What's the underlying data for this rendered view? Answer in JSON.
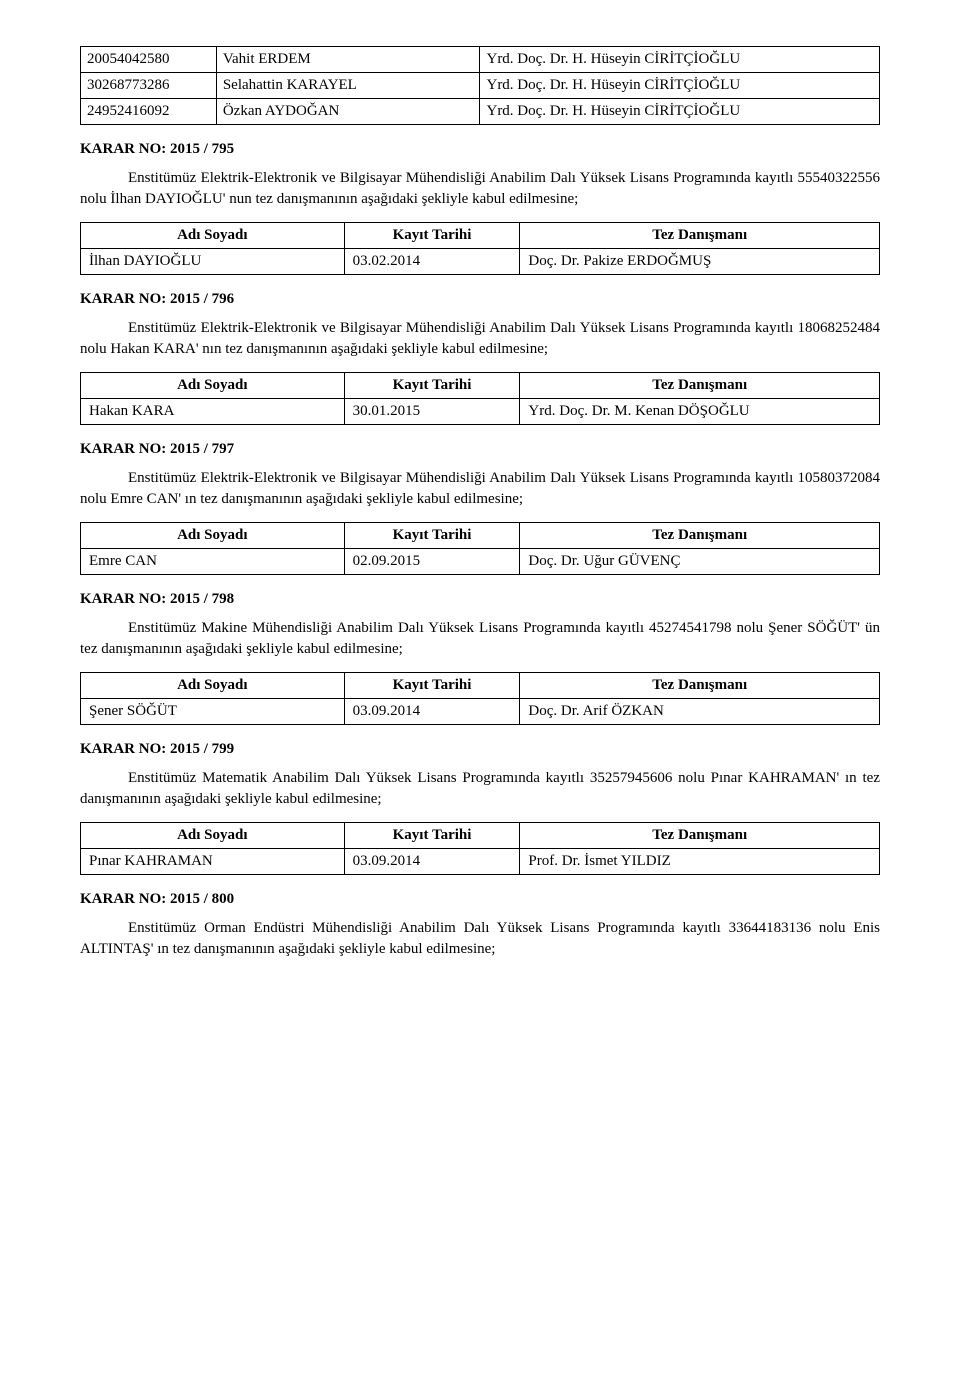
{
  "top_table": {
    "rows": [
      [
        "20054042580",
        "Vahit ERDEM",
        "Yrd. Doç. Dr. H. Hüseyin CİRİTÇİOĞLU"
      ],
      [
        "30268773286",
        "Selahattin KARAYEL",
        "Yrd. Doç. Dr. H. Hüseyin CİRİTÇİOĞLU"
      ],
      [
        "24952416092",
        "Özkan AYDOĞAN",
        "Yrd. Doç. Dr. H. Hüseyin CİRİTÇİOĞLU"
      ]
    ]
  },
  "table_headers": {
    "name": "Adı Soyadı",
    "date": "Kayıt Tarihi",
    "advisor": "Tez Danışmanı"
  },
  "sections": [
    {
      "karar": "KARAR NO: 2015 / 795",
      "para": "Enstitümüz Elektrik-Elektronik ve Bilgisayar Mühendisliği Anabilim Dalı Yüksek Lisans Programında kayıtlı 55540322556 nolu İlhan DAYIOĞLU' nun tez danışmanının aşağıdaki şekliyle kabul edilmesine;",
      "row": {
        "name": "İlhan DAYIOĞLU",
        "date": "03.02.2014",
        "advisor": "Doç. Dr. Pakize ERDOĞMUŞ"
      }
    },
    {
      "karar": "KARAR NO: 2015 / 796",
      "para": "Enstitümüz Elektrik-Elektronik ve Bilgisayar Mühendisliği Anabilim Dalı Yüksek Lisans Programında kayıtlı 18068252484 nolu Hakan KARA' nın tez danışmanının aşağıdaki şekliyle kabul edilmesine;",
      "row": {
        "name": "Hakan KARA",
        "date": "30.01.2015",
        "advisor": "Yrd. Doç. Dr. M. Kenan DÖŞOĞLU"
      }
    },
    {
      "karar": "KARAR NO: 2015 / 797",
      "para": "Enstitümüz Elektrik-Elektronik ve Bilgisayar Mühendisliği Anabilim Dalı Yüksek Lisans Programında kayıtlı 10580372084 nolu Emre CAN' ın tez danışmanının aşağıdaki şekliyle kabul edilmesine;",
      "row": {
        "name": "Emre CAN",
        "date": "02.09.2015",
        "advisor": "Doç. Dr. Uğur GÜVENÇ"
      }
    },
    {
      "karar": "KARAR NO: 2015 / 798",
      "para": "Enstitümüz Makine Mühendisliği Anabilim Dalı Yüksek Lisans Programında kayıtlı 45274541798 nolu Şener SÖĞÜT' ün tez danışmanının aşağıdaki şekliyle kabul edilmesine;",
      "row": {
        "name": "Şener SÖĞÜT",
        "date": "03.09.2014",
        "advisor": "Doç. Dr. Arif ÖZKAN"
      }
    },
    {
      "karar": "KARAR NO: 2015 / 799",
      "para": "Enstitümüz Matematik Anabilim Dalı Yüksek Lisans Programında kayıtlı 35257945606 nolu Pınar KAHRAMAN' ın tez danışmanının aşağıdaki şekliyle kabul edilmesine;",
      "row": {
        "name": "Pınar KAHRAMAN",
        "date": "03.09.2014",
        "advisor": "Prof. Dr. İsmet YILDIZ"
      }
    },
    {
      "karar": "KARAR NO: 2015 / 800",
      "para": "Enstitümüz Orman Endüstri Mühendisliği Anabilim Dalı Yüksek Lisans Programında kayıtlı 33644183136 nolu Enis ALTINTAŞ' ın tez danışmanının aşağıdaki şekliyle kabul edilmesine;",
      "row": null
    }
  ]
}
